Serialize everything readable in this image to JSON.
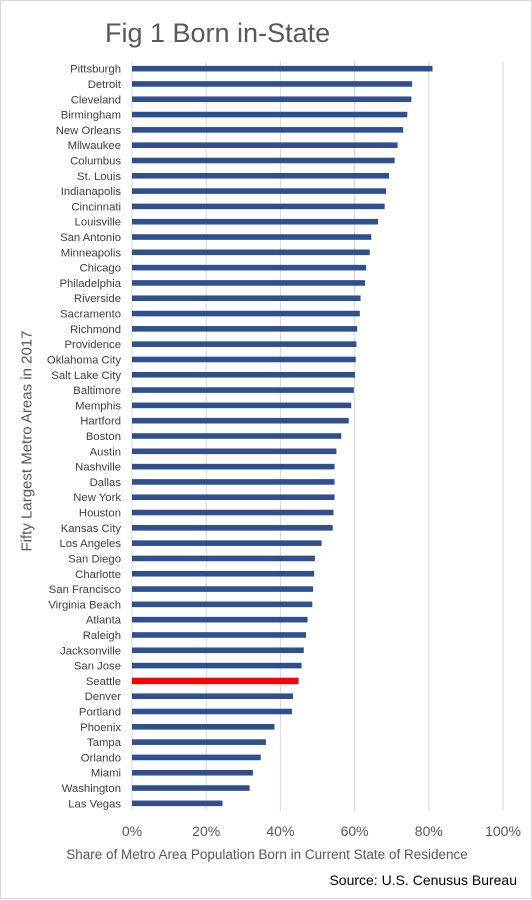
{
  "chart_data": {
    "type": "bar",
    "orientation": "horizontal",
    "title": "Fig 1 Born in-State",
    "xlabel": "Share of Metro Area Population Born in Current State of Residence",
    "ylabel": "Fifty Largest Metro Areas in 2017",
    "source": "Source: U.S. Cenusus Bureau",
    "xlim": [
      0,
      1
    ],
    "xticks": [
      "0%",
      "20%",
      "40%",
      "60%",
      "80%",
      "100%"
    ],
    "grid": "vertical",
    "bar_color": "#2f4f8f",
    "highlight_color": "#ff0000",
    "highlight_category": "Seattle",
    "categories": [
      "Pittsburgh",
      "Detroit",
      "Cleveland",
      "Birmingham",
      "New Orleans",
      "Milwaukee",
      "Columbus",
      "St. Louis",
      "Indianapolis",
      "Cincinnati",
      "Louisville",
      "San Antonio",
      "Minneapolis",
      "Chicago",
      "Philadelphia",
      "Riverside",
      "Sacramento",
      "Richmond",
      "Providence",
      "Oklahoma City",
      "Salt Lake City",
      "Baltimore",
      "Memphis",
      "Hartford",
      "Boston",
      "Austin",
      "Nashville",
      "Dallas",
      "New York",
      "Houston",
      "Kansas City",
      "Los Angeles",
      "San Diego",
      "Charlotte",
      "San Francisco",
      "Virginia Beach",
      "Atlanta",
      "Raleigh",
      "Jacksonville",
      "San Jose",
      "Seattle",
      "Denver",
      "Portland",
      "Phoenix",
      "Tampa",
      "Orlando",
      "Miami",
      "Washington",
      "Las Vegas"
    ],
    "values": [
      0.81,
      0.755,
      0.753,
      0.742,
      0.731,
      0.716,
      0.708,
      0.693,
      0.685,
      0.681,
      0.663,
      0.645,
      0.641,
      0.631,
      0.628,
      0.616,
      0.614,
      0.607,
      0.605,
      0.603,
      0.601,
      0.598,
      0.591,
      0.584,
      0.564,
      0.551,
      0.546,
      0.546,
      0.546,
      0.543,
      0.541,
      0.511,
      0.493,
      0.491,
      0.488,
      0.486,
      0.473,
      0.469,
      0.463,
      0.457,
      0.449,
      0.434,
      0.431,
      0.384,
      0.361,
      0.347,
      0.326,
      0.317,
      0.244
    ]
  }
}
